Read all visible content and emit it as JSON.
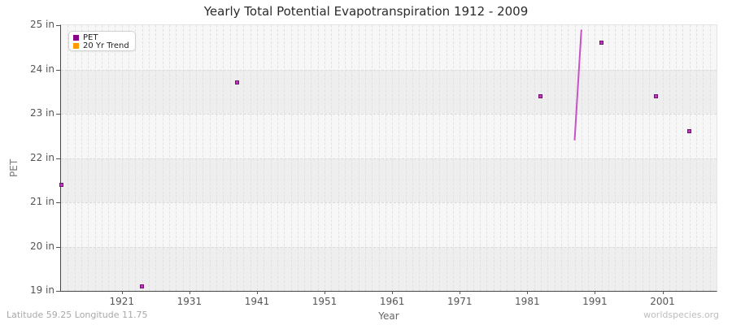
{
  "title": "Yearly Total Potential Evapotranspiration 1912 - 2009",
  "legend": {
    "items": [
      {
        "label": "PET",
        "color": "#8b008b"
      },
      {
        "label": "20 Yr Trend",
        "color": "#ff9a00"
      }
    ]
  },
  "footer": {
    "left_text": "Latitude 59.25 Longitude 11.75",
    "right_text": "worldspecies.org"
  },
  "chart_data": {
    "type": "scatter",
    "title": "Yearly Total Potential Evapotranspiration 1912 - 2009",
    "xlabel": "Year",
    "ylabel": "PET",
    "x_range": [
      1912,
      2009
    ],
    "y_range": [
      19,
      25
    ],
    "x_ticks": [
      {
        "value": 1921,
        "label": "1921"
      },
      {
        "value": 1931,
        "label": "1931"
      },
      {
        "value": 1941,
        "label": "1941"
      },
      {
        "value": 1951,
        "label": "1951"
      },
      {
        "value": 1961,
        "label": "1961"
      },
      {
        "value": 1971,
        "label": "1971"
      },
      {
        "value": 1981,
        "label": "1981"
      },
      {
        "value": 1991,
        "label": "1991"
      },
      {
        "value": 2001,
        "label": "2001"
      }
    ],
    "y_ticks": [
      {
        "value": 25,
        "label": "25 in"
      },
      {
        "value": 24,
        "label": "24 in"
      },
      {
        "value": 23,
        "label": "23 in"
      },
      {
        "value": 22,
        "label": "22 in"
      },
      {
        "value": 21,
        "label": "21 in"
      },
      {
        "value": 20,
        "label": "20 in"
      },
      {
        "value": 19,
        "label": "19 in"
      }
    ],
    "legend_position": "top-left",
    "grid": {
      "vertical": "dashed line every year",
      "horizontal": "dashed line every 1 in, alternating shaded bands",
      "band_light": "#f7f7f7",
      "band_dark": "#eeeeee",
      "vline_color": "#e1e1e1",
      "hline_color": "#d9d9d9"
    },
    "series": [
      {
        "name": "PET",
        "type": "scatter",
        "marker": "square",
        "color": "#bf35bf",
        "points": [
          [
            1912,
            21.4
          ],
          [
            1924,
            19.1
          ],
          [
            1938,
            23.7
          ],
          [
            1983,
            23.4
          ],
          [
            1992,
            24.6
          ],
          [
            2000,
            23.4
          ],
          [
            2005,
            22.6
          ]
        ]
      },
      {
        "name": "PET consecutive-years segment",
        "type": "line",
        "color": "#c653c6",
        "points": [
          [
            1988,
            22.4
          ],
          [
            1989,
            24.9
          ]
        ]
      },
      {
        "name": "20 Yr Trend",
        "type": "line",
        "color": "#ff9a00",
        "points": []
      }
    ]
  }
}
